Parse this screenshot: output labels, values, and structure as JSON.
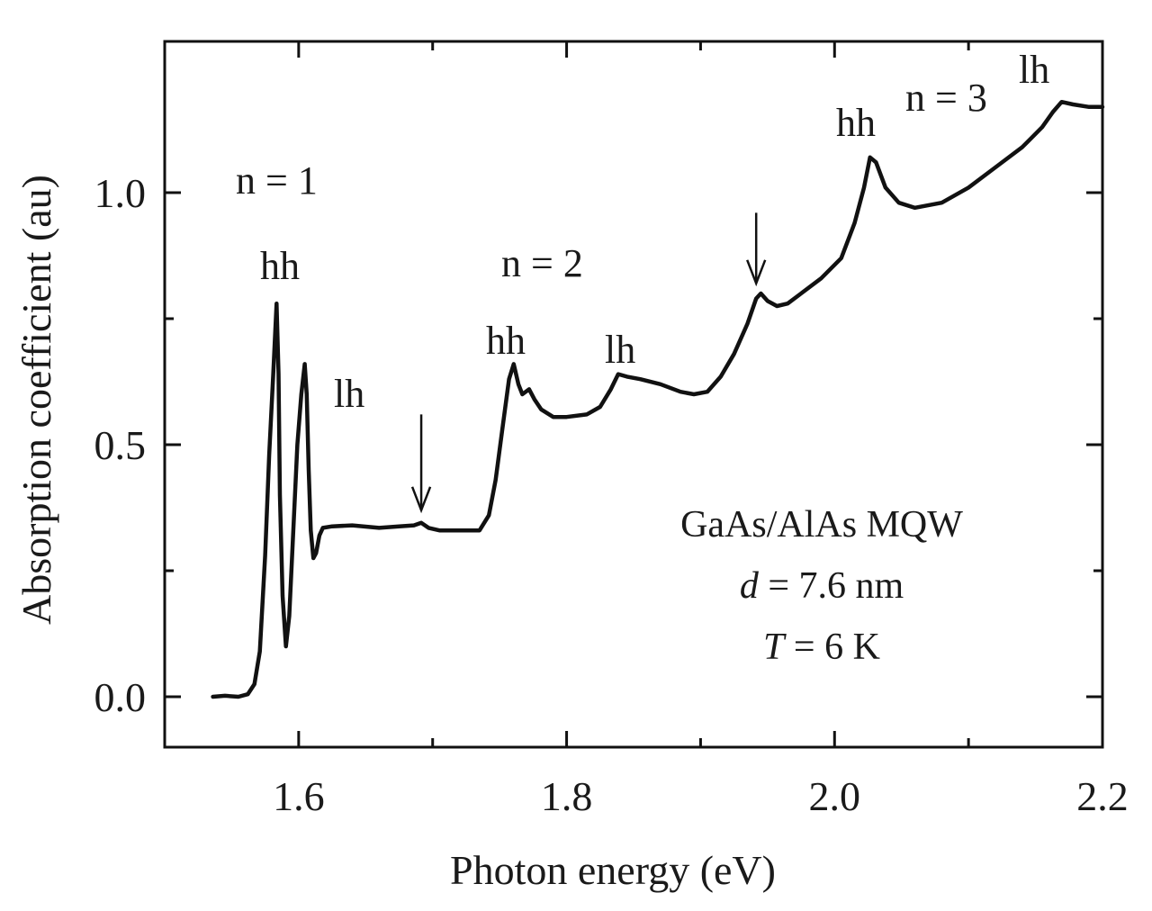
{
  "chart_data": {
    "type": "line",
    "title": "",
    "xlabel": "Photon energy (eV)",
    "ylabel": "Absorption coefficient (au)",
    "xlim": [
      1.5,
      2.2
    ],
    "ylim": [
      -0.1,
      1.3
    ],
    "xticks": [
      1.6,
      1.8,
      2.0,
      2.2
    ],
    "xtick_labels": [
      "1.6",
      "1.8",
      "2.0",
      "2.2"
    ],
    "yticks": [
      0.0,
      0.5,
      1.0
    ],
    "ytick_labels": [
      "0.0",
      "0.5",
      "1.0"
    ],
    "grid": false,
    "series": [
      {
        "x": [
          1.536,
          1.545,
          1.555,
          1.562,
          1.567,
          1.571,
          1.575,
          1.578,
          1.581,
          1.5835,
          1.585,
          1.586,
          1.588,
          1.5905,
          1.593,
          1.596,
          1.599,
          1.602,
          1.6045,
          1.606,
          1.6075,
          1.609,
          1.611,
          1.613,
          1.6155,
          1.618,
          1.625,
          1.64,
          1.66,
          1.675,
          1.686,
          1.6915,
          1.697,
          1.705,
          1.72,
          1.735,
          1.742,
          1.747,
          1.752,
          1.757,
          1.7605,
          1.764,
          1.767,
          1.772,
          1.776,
          1.781,
          1.79,
          1.8,
          1.815,
          1.825,
          1.833,
          1.8385,
          1.845,
          1.855,
          1.87,
          1.885,
          1.895,
          1.905,
          1.915,
          1.925,
          1.935,
          1.9415,
          1.945,
          1.95,
          1.957,
          1.965,
          1.975,
          1.99,
          2.005,
          2.015,
          2.022,
          2.0265,
          2.031,
          2.038,
          2.048,
          2.06,
          2.08,
          2.1,
          2.12,
          2.14,
          2.155,
          2.163,
          2.1695,
          2.178,
          2.19,
          2.198,
          2.2
        ],
        "values": [
          0.0,
          0.002,
          0.0,
          0.005,
          0.025,
          0.09,
          0.28,
          0.48,
          0.64,
          0.78,
          0.64,
          0.4,
          0.2,
          0.1,
          0.16,
          0.33,
          0.5,
          0.6,
          0.66,
          0.6,
          0.45,
          0.33,
          0.275,
          0.285,
          0.32,
          0.335,
          0.338,
          0.34,
          0.335,
          0.338,
          0.34,
          0.345,
          0.335,
          0.33,
          0.33,
          0.33,
          0.36,
          0.43,
          0.53,
          0.63,
          0.66,
          0.62,
          0.6,
          0.61,
          0.59,
          0.57,
          0.555,
          0.555,
          0.56,
          0.575,
          0.61,
          0.64,
          0.635,
          0.63,
          0.62,
          0.605,
          0.6,
          0.605,
          0.635,
          0.68,
          0.74,
          0.79,
          0.8,
          0.785,
          0.775,
          0.78,
          0.8,
          0.83,
          0.87,
          0.94,
          1.01,
          1.07,
          1.06,
          1.01,
          0.98,
          0.97,
          0.98,
          1.01,
          1.05,
          1.09,
          1.13,
          1.16,
          1.18,
          1.175,
          1.17,
          1.17,
          1.17
        ]
      }
    ],
    "annotations": {
      "n1": "n = 1",
      "n2": "n = 2",
      "n3": "n = 3",
      "hh": "hh",
      "lh": "lh"
    },
    "arrows": [
      {
        "x": 1.6915,
        "y_tip": 0.37,
        "y_tail": 0.56
      },
      {
        "x": 1.9415,
        "y_tip": 0.82,
        "y_tail": 0.96
      }
    ],
    "sample_note": {
      "line1": "GaAs/AlAs  MQW",
      "line2_var": "d",
      "line2_rest": " = 7.6 nm",
      "line3_var": "T",
      "line3_rest": " = 6 K"
    }
  }
}
